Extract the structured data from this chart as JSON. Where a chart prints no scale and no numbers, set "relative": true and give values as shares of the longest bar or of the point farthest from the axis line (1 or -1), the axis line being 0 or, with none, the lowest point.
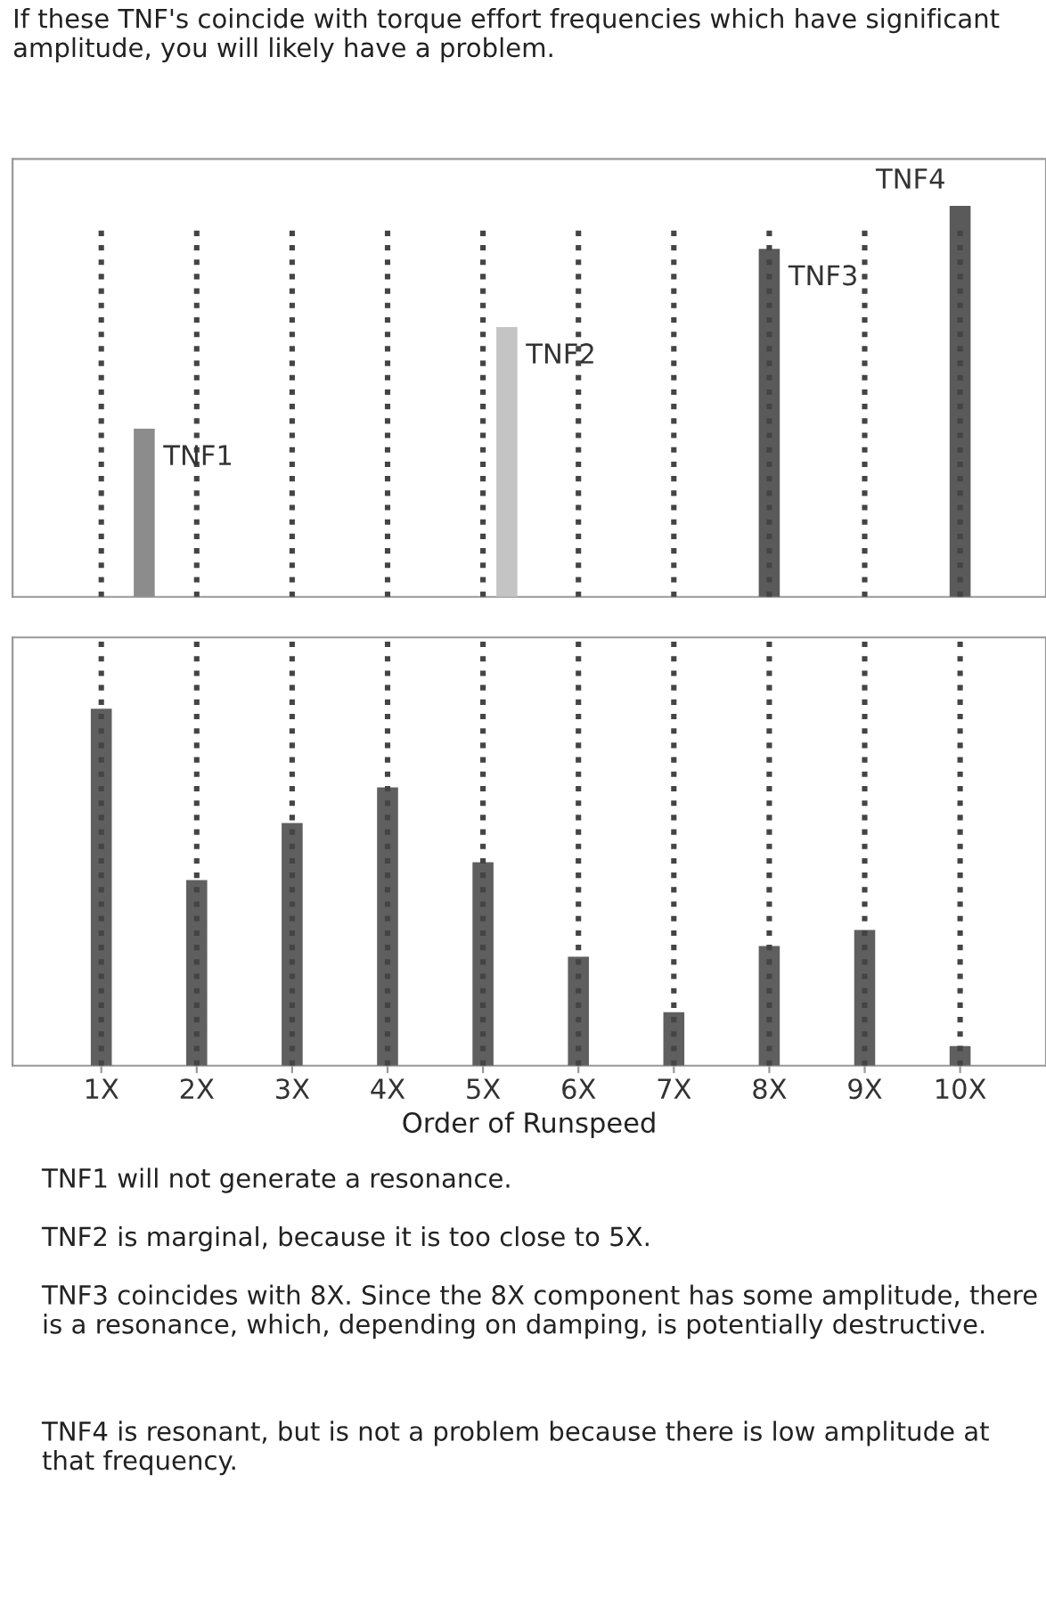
{
  "chart_data": [
    {
      "type": "bar",
      "title": "If these TNF's coincide with torque effort frequencies which have significant amplitude, you will likely have a problem.",
      "relative": true,
      "x": [
        1.45,
        5.25,
        8,
        10
      ],
      "values": [
        0.43,
        0.69,
        0.89,
        1
      ],
      "colors": [
        "#8c8c8c",
        "#c4c4c4",
        "#5a5a5a",
        "#5a5a5a"
      ],
      "xlim": [
        0.07,
        10.9
      ],
      "tick_labels": false,
      "ref_lines": [
        {
          "axis": "x",
          "value": 1,
          "line_style": "dotted",
          "color": "#444444"
        },
        {
          "axis": "x",
          "value": 2,
          "line_style": "dotted",
          "color": "#444444"
        },
        {
          "axis": "x",
          "value": 3,
          "line_style": "dotted",
          "color": "#444444"
        },
        {
          "axis": "x",
          "value": 4,
          "line_style": "dotted",
          "color": "#444444"
        },
        {
          "axis": "x",
          "value": 5,
          "line_style": "dotted",
          "color": "#444444"
        },
        {
          "axis": "x",
          "value": 6,
          "line_style": "dotted",
          "color": "#444444"
        },
        {
          "axis": "x",
          "value": 7,
          "line_style": "dotted",
          "color": "#444444"
        },
        {
          "axis": "x",
          "value": 8,
          "line_style": "dotted",
          "color": "#444444"
        },
        {
          "axis": "x",
          "value": 9,
          "line_style": "dotted",
          "color": "#444444"
        },
        {
          "axis": "x",
          "value": 10,
          "line_style": "dotted",
          "color": "#444444"
        }
      ],
      "annotations": [
        "TNF1",
        "TNF2",
        "TNF3",
        "TNF4"
      ]
    },
    {
      "type": "bar",
      "relative": true,
      "xlabel": "Order of Runspeed",
      "tick_labels": "x",
      "x": [
        1,
        2,
        3,
        4,
        5,
        6,
        7,
        8,
        9,
        10
      ],
      "xlim": [
        0.07,
        10.9
      ],
      "xticks": [
        {
          "value": 1,
          "label": "1X"
        },
        {
          "value": 2,
          "label": "2X"
        },
        {
          "value": 3,
          "label": "3X"
        },
        {
          "value": 4,
          "label": "4X"
        },
        {
          "value": 5,
          "label": "5X"
        },
        {
          "value": 6,
          "label": "6X"
        },
        {
          "value": 7,
          "label": "7X"
        },
        {
          "value": 8,
          "label": "8X"
        },
        {
          "value": 9,
          "label": "9X"
        },
        {
          "value": 10,
          "label": "10X"
        }
      ],
      "values": [
        1,
        0.52,
        0.68,
        0.78,
        0.57,
        0.305,
        0.15,
        0.335,
        0.38,
        0.055
      ],
      "color": "#5f5f5f",
      "ref_lines": [
        {
          "axis": "x",
          "value": 1,
          "line_style": "dotted",
          "color": "#444444"
        },
        {
          "axis": "x",
          "value": 2,
          "line_style": "dotted",
          "color": "#444444"
        },
        {
          "axis": "x",
          "value": 3,
          "line_style": "dotted",
          "color": "#444444"
        },
        {
          "axis": "x",
          "value": 4,
          "line_style": "dotted",
          "color": "#444444"
        },
        {
          "axis": "x",
          "value": 5,
          "line_style": "dotted",
          "color": "#444444"
        },
        {
          "axis": "x",
          "value": 6,
          "line_style": "dotted",
          "color": "#444444"
        },
        {
          "axis": "x",
          "value": 7,
          "line_style": "dotted",
          "color": "#444444"
        },
        {
          "axis": "x",
          "value": 8,
          "line_style": "dotted",
          "color": "#444444"
        },
        {
          "axis": "x",
          "value": 9,
          "line_style": "dotted",
          "color": "#444444"
        },
        {
          "axis": "x",
          "value": 10,
          "line_style": "dotted",
          "color": "#444444"
        }
      ],
      "annotations": [
        "TNF1 will not generate a resonance.",
        "TNF2 is marginal, because it is too close to 5X.",
        "TNF3 coincides with 8X. Since the 8X component has some amplitude, there is a resonance, which, depending on damping, is potentially destructive.",
        "TNF4 is resonant, but is not a problem because there is low amplitude at that frequency."
      ]
    }
  ]
}
